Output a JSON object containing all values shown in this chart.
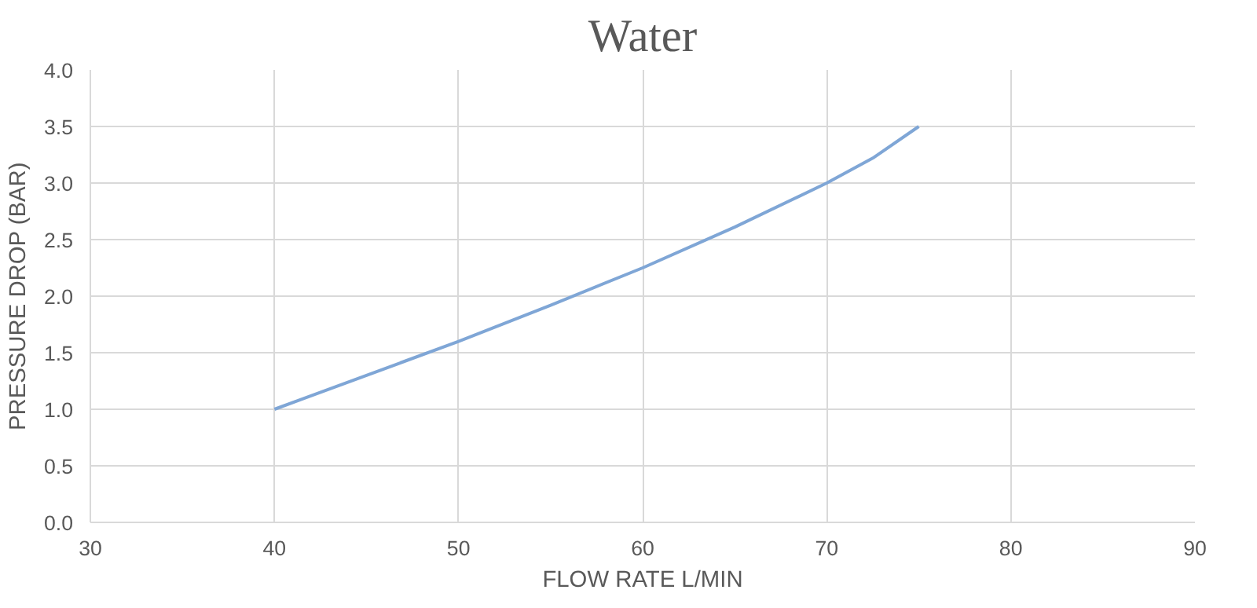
{
  "chart_data": {
    "type": "line",
    "title": "Water",
    "xlabel": "FLOW RATE L/MIN",
    "ylabel": "PRESSURE DROP (BAR)",
    "x": [
      40,
      45,
      50,
      55,
      60,
      65,
      70,
      72.5,
      75
    ],
    "series": [
      {
        "color": "#7fa6d6",
        "values": [
          1.0,
          1.3,
          1.6,
          1.92,
          2.25,
          2.61,
          3.0,
          3.22,
          3.5
        ]
      }
    ],
    "xlim": [
      30,
      90
    ],
    "xticks": [
      30,
      40,
      50,
      60,
      70,
      80,
      90
    ],
    "ylim": [
      0,
      4
    ],
    "yticks": [
      {
        "value": 0,
        "label": "0.0"
      },
      {
        "value": 0.5,
        "label": "0.5"
      },
      {
        "value": 1,
        "label": "1.0"
      },
      {
        "value": 1.5,
        "label": "1.5"
      },
      {
        "value": 2,
        "label": "2.0"
      },
      {
        "value": 2.5,
        "label": "2.5"
      },
      {
        "value": 3,
        "label": "3.0"
      },
      {
        "value": 3.5,
        "label": "3.5"
      },
      {
        "value": 4,
        "label": "4.0"
      }
    ],
    "grid": true,
    "marker": "none",
    "line_style": "solid"
  }
}
